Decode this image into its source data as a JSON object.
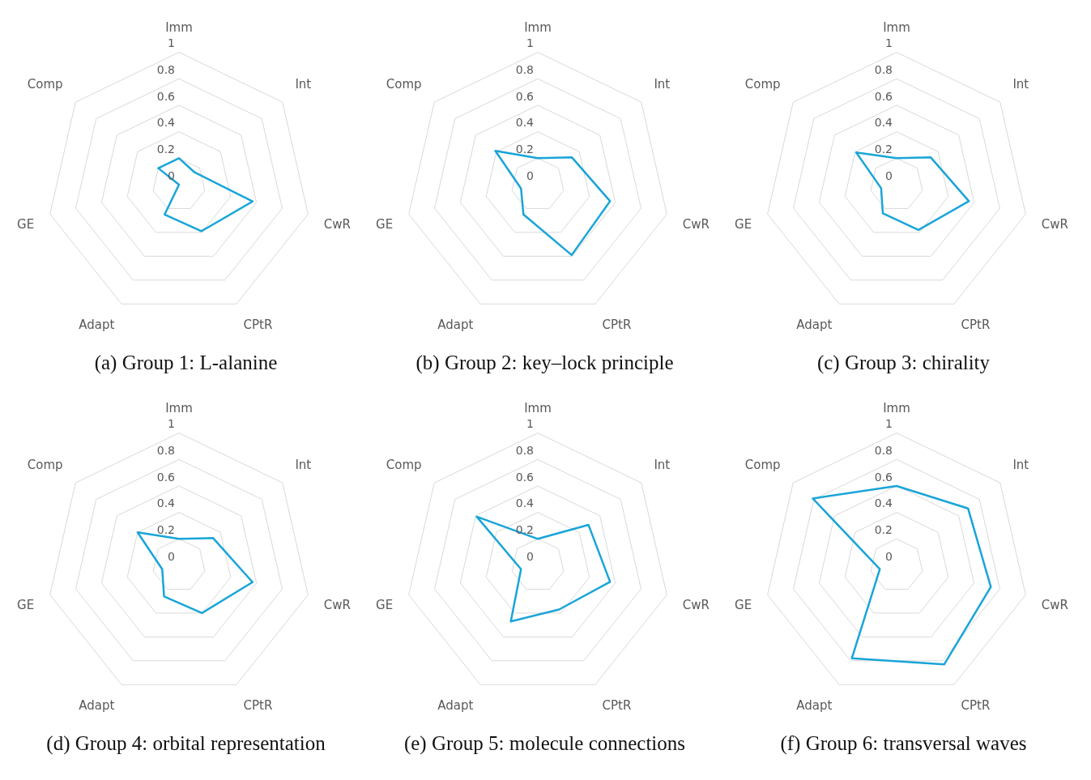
{
  "chart_data": [
    {
      "type": "radar",
      "title": "(a) Group 1: L-alanine",
      "categories": [
        "Imm",
        "Int",
        "CwR",
        "CPtR",
        "Adapt",
        "GE",
        "Comp"
      ],
      "series": [
        {
          "color": "#19a5d8",
          "values": [
            0.2,
            0.15,
            0.57,
            0.39,
            0.25,
            0,
            0.2
          ]
        }
      ],
      "ylim": [
        0,
        1
      ],
      "yticks": [
        0,
        0.2,
        0.4,
        0.6,
        0.8,
        1
      ],
      "grid": true
    },
    {
      "type": "radar",
      "title": "(b) Group 2: key–lock principle",
      "categories": [
        "Imm",
        "Int",
        "CwR",
        "CPtR",
        "Adapt",
        "GE",
        "Comp"
      ],
      "series": [
        {
          "color": "#19a5d8",
          "values": [
            0.2,
            0.33,
            0.56,
            0.59,
            0.25,
            0.13,
            0.41
          ]
        }
      ],
      "ylim": [
        0,
        1
      ],
      "yticks": [
        0,
        0.2,
        0.4,
        0.6,
        0.8,
        1
      ],
      "grid": true
    },
    {
      "type": "radar",
      "title": "(c) Group 3: chirality",
      "categories": [
        "Imm",
        "Int",
        "CwR",
        "CPtR",
        "Adapt",
        "GE",
        "Comp"
      ],
      "series": [
        {
          "color": "#19a5d8",
          "values": [
            0.2,
            0.33,
            0.56,
            0.38,
            0.24,
            0.12,
            0.39
          ]
        }
      ],
      "ylim": [
        0,
        1
      ],
      "yticks": [
        0,
        0.2,
        0.4,
        0.6,
        0.8,
        1
      ],
      "grid": true
    },
    {
      "type": "radar",
      "title": "(d) Group 4: orbital representation",
      "categories": [
        "Imm",
        "Int",
        "CwR",
        "CPtR",
        "Adapt",
        "GE",
        "Comp"
      ],
      "series": [
        {
          "color": "#19a5d8",
          "values": [
            0.2,
            0.33,
            0.57,
            0.4,
            0.26,
            0.13,
            0.4
          ]
        }
      ],
      "ylim": [
        0,
        1
      ],
      "yticks": [
        0,
        0.2,
        0.4,
        0.6,
        0.8,
        1
      ],
      "grid": true
    },
    {
      "type": "radar",
      "title": "(e) Group 5: molecule connections",
      "categories": [
        "Imm",
        "Int",
        "CwR",
        "CPtR",
        "Adapt",
        "GE",
        "Comp"
      ],
      "series": [
        {
          "color": "#19a5d8",
          "values": [
            0.2,
            0.49,
            0.56,
            0.37,
            0.47,
            0.13,
            0.59
          ]
        }
      ],
      "ylim": [
        0,
        1
      ],
      "yticks": [
        0,
        0.2,
        0.4,
        0.6,
        0.8,
        1
      ],
      "grid": true
    },
    {
      "type": "radar",
      "title": "(f) Group 6: transversal waves",
      "categories": [
        "Imm",
        "Int",
        "CwR",
        "CPtR",
        "Adapt",
        "GE",
        "Comp"
      ],
      "series": [
        {
          "color": "#19a5d8",
          "values": [
            0.6,
            0.69,
            0.73,
            0.83,
            0.78,
            0.13,
            0.81
          ]
        }
      ],
      "ylim": [
        0,
        1
      ],
      "yticks": [
        0,
        0.2,
        0.4,
        0.6,
        0.8,
        1
      ],
      "grid": true
    }
  ]
}
